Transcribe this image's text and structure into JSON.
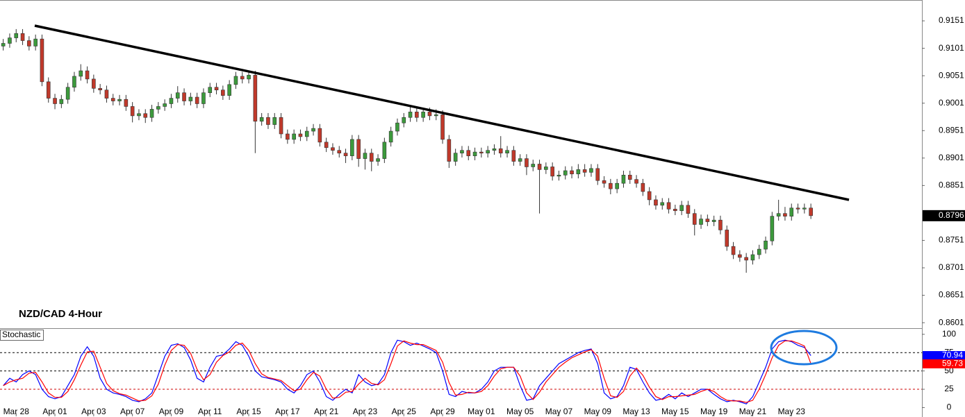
{
  "chart_data": [
    {
      "type": "candlestick",
      "title": "NZD/CAD 4-Hour",
      "categories": [
        null,
        null,
        "Mar 28",
        null,
        null,
        null,
        null,
        null,
        "Apr 01",
        null,
        null,
        null,
        null,
        null,
        "Apr 03",
        null,
        null,
        null,
        null,
        null,
        "Apr 07",
        null,
        null,
        null,
        null,
        null,
        "Apr 09",
        null,
        null,
        null,
        null,
        null,
        "Apr 11",
        null,
        null,
        null,
        null,
        null,
        "Apr 15",
        null,
        null,
        null,
        null,
        null,
        "Apr 17",
        null,
        null,
        null,
        null,
        null,
        "Apr 21",
        null,
        null,
        null,
        null,
        null,
        "Apr 23",
        null,
        null,
        null,
        null,
        null,
        "Apr 25",
        null,
        null,
        null,
        null,
        null,
        "Apr 29",
        null,
        null,
        null,
        null,
        null,
        "May 01",
        null,
        null,
        null,
        null,
        null,
        "May 05",
        null,
        null,
        null,
        null,
        null,
        "May 07",
        null,
        null,
        null,
        null,
        null,
        "May 09",
        null,
        null,
        null,
        null,
        null,
        "May 13",
        null,
        null,
        null,
        null,
        null,
        "May 15",
        null,
        null,
        null,
        null,
        null,
        "May 19",
        null,
        null,
        null,
        null,
        null,
        "May 21",
        null,
        null,
        null,
        null,
        null,
        "May 23",
        null,
        null,
        null
      ],
      "open": [
        0.9105,
        0.911,
        0.912,
        0.9128,
        0.9115,
        0.9105,
        0.9118,
        0.904,
        0.901,
        0.9,
        0.9008,
        0.903,
        0.905,
        0.906,
        0.9045,
        0.9028,
        0.9025,
        0.901,
        0.9005,
        0.9008,
        0.8995,
        0.8978,
        0.8982,
        0.8975,
        0.899,
        0.8995,
        0.9,
        0.901,
        0.902,
        0.9005,
        0.9012,
        0.9,
        0.902,
        0.903,
        0.9025,
        0.9015,
        0.9035,
        0.905,
        0.9045,
        0.9052,
        0.8968,
        0.8975,
        0.8962,
        0.8975,
        0.8945,
        0.8935,
        0.8945,
        0.894,
        0.895,
        0.8955,
        0.893,
        0.892,
        0.8915,
        0.891,
        0.8905,
        0.8935,
        0.89,
        0.891,
        0.8895,
        0.89,
        0.893,
        0.895,
        0.8965,
        0.8975,
        0.8985,
        0.8975,
        0.8985,
        0.8978,
        0.898,
        0.8935,
        0.8895,
        0.891,
        0.8915,
        0.8905,
        0.8912,
        0.891,
        0.8915,
        0.8918,
        0.891,
        0.8915,
        0.8895,
        0.89,
        0.8885,
        0.889,
        0.888,
        0.8885,
        0.8868,
        0.887,
        0.8878,
        0.8872,
        0.888,
        0.8875,
        0.8882,
        0.886,
        0.8855,
        0.8845,
        0.8855,
        0.887,
        0.8862,
        0.8855,
        0.884,
        0.8825,
        0.8815,
        0.882,
        0.8808,
        0.8805,
        0.8815,
        0.88,
        0.878,
        0.879,
        0.8785,
        0.8788,
        0.877,
        0.874,
        0.8725,
        0.872,
        0.8715,
        0.8725,
        0.8735,
        0.875,
        0.8795,
        0.88,
        0.8795,
        0.881,
        0.8808,
        0.881
      ],
      "high": [
        0.9118,
        0.9128,
        0.9136,
        0.9136,
        0.9123,
        0.9126,
        0.9126,
        0.9048,
        0.9018,
        0.9016,
        0.9038,
        0.9058,
        0.9072,
        0.9068,
        0.9053,
        0.9036,
        0.9033,
        0.9018,
        0.9016,
        0.9016,
        0.9003,
        0.899,
        0.899,
        0.8998,
        0.9003,
        0.9008,
        0.9018,
        0.9032,
        0.9028,
        0.902,
        0.902,
        0.9028,
        0.9038,
        0.9038,
        0.9033,
        0.9043,
        0.9058,
        0.9058,
        0.906,
        0.906,
        0.8983,
        0.8983,
        0.8983,
        0.8983,
        0.8953,
        0.8953,
        0.8953,
        0.8958,
        0.8963,
        0.8963,
        0.8938,
        0.8928,
        0.8923,
        0.8918,
        0.8943,
        0.8943,
        0.8918,
        0.8918,
        0.8908,
        0.8938,
        0.8958,
        0.8973,
        0.8983,
        0.8995,
        0.8993,
        0.8993,
        0.8993,
        0.899,
        0.8988,
        0.8943,
        0.8918,
        0.8923,
        0.8923,
        0.892,
        0.892,
        0.8923,
        0.8926,
        0.8941,
        0.8923,
        0.8923,
        0.8908,
        0.8908,
        0.8898,
        0.8898,
        0.8893,
        0.8893,
        0.8878,
        0.8886,
        0.8886,
        0.889,
        0.889,
        0.889,
        0.889,
        0.8868,
        0.8863,
        0.8863,
        0.8878,
        0.8878,
        0.887,
        0.8863,
        0.8848,
        0.8833,
        0.8828,
        0.8828,
        0.8816,
        0.8823,
        0.8823,
        0.8808,
        0.8798,
        0.8798,
        0.8796,
        0.8796,
        0.8778,
        0.8748,
        0.8733,
        0.8728,
        0.8733,
        0.8743,
        0.8758,
        0.8803,
        0.8825,
        0.8812,
        0.8818,
        0.8818,
        0.8818,
        0.8818
      ],
      "low": [
        0.9097,
        0.9102,
        0.9112,
        0.9107,
        0.9097,
        0.9097,
        0.9032,
        0.9002,
        0.899,
        0.8992,
        0.9,
        0.9022,
        0.9042,
        0.9037,
        0.902,
        0.9017,
        0.9002,
        0.8997,
        0.8997,
        0.8987,
        0.8966,
        0.897,
        0.8965,
        0.8967,
        0.8982,
        0.8987,
        0.8992,
        0.9002,
        0.8997,
        0.8997,
        0.8992,
        0.8992,
        0.9012,
        0.9017,
        0.9007,
        0.9007,
        0.9027,
        0.9037,
        0.9037,
        0.891,
        0.896,
        0.8954,
        0.8954,
        0.8937,
        0.8927,
        0.8927,
        0.8932,
        0.8932,
        0.8942,
        0.8922,
        0.8912,
        0.8907,
        0.8902,
        0.8892,
        0.8897,
        0.8885,
        0.888,
        0.8877,
        0.8887,
        0.8892,
        0.8922,
        0.8942,
        0.8957,
        0.8967,
        0.8967,
        0.8967,
        0.897,
        0.897,
        0.8927,
        0.8883,
        0.8887,
        0.8902,
        0.8897,
        0.8897,
        0.8902,
        0.8902,
        0.8907,
        0.8902,
        0.8902,
        0.8887,
        0.8887,
        0.887,
        0.8877,
        0.88,
        0.8872,
        0.886,
        0.886,
        0.8862,
        0.8864,
        0.8864,
        0.8867,
        0.8867,
        0.8852,
        0.8847,
        0.8835,
        0.8837,
        0.8847,
        0.8854,
        0.8847,
        0.8832,
        0.8815,
        0.8807,
        0.8807,
        0.88,
        0.8797,
        0.8797,
        0.8792,
        0.876,
        0.8772,
        0.8777,
        0.8777,
        0.8762,
        0.8732,
        0.8717,
        0.8712,
        0.8692,
        0.8707,
        0.8717,
        0.8727,
        0.8742,
        0.8787,
        0.8787,
        0.8787,
        0.88,
        0.88,
        0.879
      ],
      "close": [
        0.911,
        0.912,
        0.9128,
        0.9115,
        0.9105,
        0.9118,
        0.904,
        0.901,
        0.9,
        0.9008,
        0.903,
        0.905,
        0.906,
        0.9045,
        0.9028,
        0.9025,
        0.901,
        0.9005,
        0.9008,
        0.8995,
        0.8978,
        0.8982,
        0.8975,
        0.899,
        0.8995,
        0.9,
        0.901,
        0.902,
        0.9005,
        0.9012,
        0.9,
        0.902,
        0.903,
        0.9025,
        0.9015,
        0.9035,
        0.905,
        0.9045,
        0.9052,
        0.8968,
        0.8975,
        0.8962,
        0.8975,
        0.8945,
        0.8935,
        0.8945,
        0.894,
        0.895,
        0.8955,
        0.893,
        0.892,
        0.8915,
        0.891,
        0.8905,
        0.8935,
        0.89,
        0.891,
        0.8895,
        0.89,
        0.893,
        0.895,
        0.8965,
        0.8975,
        0.8985,
        0.8975,
        0.8985,
        0.8978,
        0.898,
        0.8935,
        0.8895,
        0.891,
        0.8915,
        0.8905,
        0.8912,
        0.891,
        0.8915,
        0.8918,
        0.891,
        0.8915,
        0.8895,
        0.89,
        0.8885,
        0.889,
        0.888,
        0.8885,
        0.8868,
        0.887,
        0.8878,
        0.8872,
        0.888,
        0.8875,
        0.8882,
        0.886,
        0.8855,
        0.8845,
        0.8855,
        0.887,
        0.8862,
        0.8855,
        0.884,
        0.8825,
        0.8815,
        0.882,
        0.8808,
        0.8805,
        0.8815,
        0.88,
        0.878,
        0.879,
        0.8785,
        0.8788,
        0.877,
        0.874,
        0.8725,
        0.872,
        0.8715,
        0.8725,
        0.8735,
        0.875,
        0.8795,
        0.88,
        0.8795,
        0.881,
        0.8808,
        0.881,
        0.8796
      ],
      "up_color": "#3c9a3c",
      "down_color": "#c0392b",
      "last_price": 0.8796,
      "ylim": [
        0.8591,
        0.9189
      ],
      "yticks": [
        0.9151,
        0.9101,
        0.9051,
        0.9001,
        0.8951,
        0.8901,
        0.8851,
        0.8751,
        0.8701,
        0.8651,
        0.8601
      ]
    },
    {
      "type": "line",
      "title": "Stochastic",
      "series": [
        {
          "color": "#0000ff",
          "values": [
            30,
            40,
            35,
            45,
            50,
            45,
            25,
            15,
            12,
            15,
            30,
            45,
            70,
            83,
            70,
            40,
            25,
            20,
            18,
            15,
            10,
            8,
            12,
            20,
            45,
            70,
            85,
            87,
            82,
            65,
            40,
            35,
            55,
            70,
            72,
            80,
            90,
            85,
            70,
            50,
            42,
            40,
            38,
            35,
            25,
            20,
            30,
            45,
            50,
            35,
            15,
            10,
            18,
            25,
            20,
            45,
            35,
            30,
            32,
            45,
            75,
            92,
            90,
            85,
            88,
            84,
            80,
            75,
            50,
            18,
            15,
            22,
            20,
            20,
            25,
            35,
            50,
            55,
            55,
            55,
            30,
            10,
            12,
            30,
            40,
            50,
            60,
            65,
            70,
            75,
            78,
            80,
            60,
            20,
            12,
            15,
            30,
            55,
            52,
            35,
            20,
            10,
            12,
            18,
            12,
            20,
            15,
            20,
            25,
            25,
            18,
            12,
            8,
            10,
            8,
            5,
            15,
            35,
            55,
            80,
            90,
            92,
            90,
            85,
            82,
            70.94
          ]
        },
        {
          "color": "#ff0000",
          "values": [
            30,
            35,
            38,
            40,
            47,
            48,
            35,
            20,
            14,
            14,
            22,
            38,
            58,
            76,
            77,
            55,
            33,
            23,
            19,
            17,
            13,
            9,
            10,
            16,
            32,
            58,
            78,
            86,
            85,
            74,
            52,
            38,
            45,
            62,
            71,
            76,
            85,
            88,
            78,
            60,
            46,
            41,
            39,
            37,
            30,
            23,
            25,
            38,
            48,
            43,
            25,
            13,
            14,
            21,
            22,
            32,
            40,
            33,
            31,
            38,
            60,
            84,
            91,
            88,
            86,
            86,
            82,
            78,
            62,
            34,
            17,
            18,
            21,
            20,
            22,
            30,
            43,
            53,
            55,
            55,
            43,
            20,
            11,
            21,
            35,
            45,
            55,
            62,
            68,
            72,
            76,
            79,
            70,
            40,
            16,
            14,
            22,
            43,
            54,
            44,
            28,
            15,
            11,
            15,
            15,
            16,
            17,
            18,
            22,
            25,
            22,
            15,
            10,
            9,
            9,
            7,
            10,
            25,
            45,
            68,
            85,
            91,
            91,
            88,
            84,
            59.73
          ]
        }
      ],
      "levels": [
        {
          "value": 75,
          "color": "#000000"
        },
        {
          "value": 50,
          "color": "#000000"
        },
        {
          "value": 25,
          "color": "#cc0000"
        }
      ],
      "ylim": [
        -10,
        107.4
      ],
      "yticks": [
        100,
        75,
        50,
        25,
        0
      ]
    }
  ]
}
